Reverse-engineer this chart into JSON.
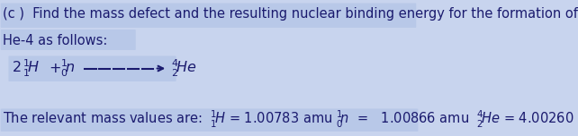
{
  "bg_color": "#c8d4ee",
  "highlight_color": "#b8c8e8",
  "text_color": "#1a1a6e",
  "fig_width": 6.42,
  "fig_height": 1.52,
  "dpi": 100,
  "fs_main": 10.5,
  "fs_eq": 11.5,
  "fs_mass": 10.5,
  "line1": "(c )  Find the mass defect and the resulting nuclear binding energy for the formation of",
  "line2": "He-4 as follows:"
}
